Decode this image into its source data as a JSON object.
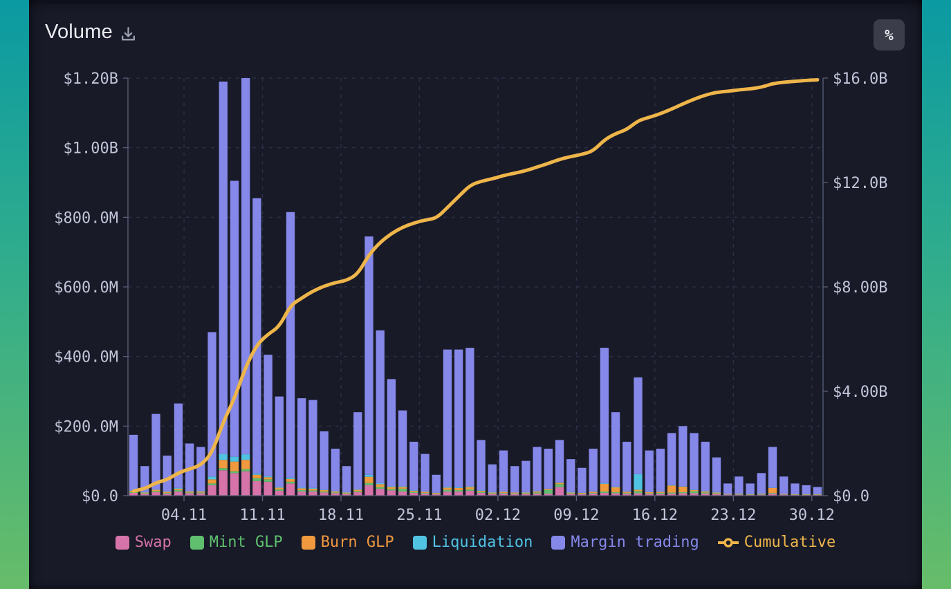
{
  "header": {
    "title": "Volume",
    "download_icon": "download-icon",
    "percent_button": "%"
  },
  "colors": {
    "page_gradient_top": "#0b9aa2",
    "page_gradient_bottom": "#67bc69",
    "card_bg": "#181a28",
    "grid": "#2c3046",
    "axis_line": "#5b6078",
    "axis_text": "#c2c6d9",
    "title_text": "#ececf2",
    "icon": "#9aa0b2",
    "button_bg": "#3b3e4a",
    "button_text": "#e8e9ee"
  },
  "chart_data": {
    "type": "bar",
    "stacked": true,
    "unit": "$M",
    "grid": true,
    "legend_position": "bottom",
    "dates": [
      "31.10",
      "01.11",
      "02.11",
      "03.11",
      "04.11",
      "05.11",
      "06.11",
      "07.11",
      "08.11",
      "09.11",
      "10.11",
      "11.11",
      "12.11",
      "13.11",
      "14.11",
      "15.11",
      "16.11",
      "17.11",
      "18.11",
      "19.11",
      "20.11",
      "21.11",
      "22.11",
      "23.11",
      "24.11",
      "25.11",
      "26.11",
      "27.11",
      "28.11",
      "29.11",
      "30.11",
      "01.12",
      "02.12",
      "03.12",
      "04.12",
      "05.12",
      "06.12",
      "07.12",
      "08.12",
      "09.12",
      "10.12",
      "11.12",
      "12.12",
      "13.12",
      "14.12",
      "15.12",
      "16.12",
      "17.12",
      "18.12",
      "19.12",
      "20.12",
      "21.12",
      "22.12",
      "23.12",
      "24.12",
      "25.12",
      "26.12",
      "27.12",
      "28.12",
      "29.12",
      "30.12",
      "31.12"
    ],
    "series": [
      {
        "name": "Swap",
        "color": "#d673a8",
        "values": [
          8,
          5,
          10,
          6,
          12,
          7,
          7,
          30,
          73,
          65,
          70,
          42,
          40,
          14,
          35,
          12,
          12,
          9,
          7,
          5,
          10,
          30,
          20,
          15,
          12,
          8,
          6,
          4,
          12,
          12,
          14,
          8,
          5,
          6,
          5,
          5,
          6,
          6,
          25,
          5,
          4,
          6,
          8,
          7,
          6,
          7,
          5,
          5,
          6,
          7,
          7,
          6,
          5,
          3,
          3,
          2,
          3,
          6,
          3,
          2,
          2,
          2
        ]
      },
      {
        "name": "Mint GLP",
        "color": "#5fbf6e",
        "values": [
          3,
          2,
          3,
          2,
          4,
          2,
          2,
          5,
          6,
          5,
          6,
          8,
          7,
          4,
          5,
          4,
          3,
          3,
          2,
          2,
          3,
          6,
          5,
          4,
          8,
          3,
          2,
          2,
          5,
          4,
          4,
          3,
          2,
          2,
          2,
          2,
          3,
          10,
          8,
          2,
          2,
          2,
          4,
          3,
          2,
          6,
          2,
          3,
          3,
          3,
          6,
          3,
          2,
          1,
          2,
          1,
          2,
          2,
          1,
          1,
          1,
          1
        ]
      },
      {
        "name": "Burn GLP",
        "color": "#f0993e",
        "values": [
          3,
          2,
          4,
          3,
          4,
          3,
          3,
          12,
          24,
          28,
          27,
          10,
          6,
          5,
          8,
          5,
          5,
          4,
          3,
          2,
          4,
          18,
          8,
          6,
          5,
          3,
          3,
          2,
          6,
          6,
          7,
          3,
          2,
          3,
          2,
          2,
          3,
          3,
          4,
          2,
          2,
          3,
          22,
          14,
          3,
          4,
          3,
          3,
          20,
          16,
          3,
          3,
          2,
          1,
          1,
          1,
          1,
          14,
          1,
          1,
          1,
          1
        ]
      },
      {
        "name": "Liquidation",
        "color": "#50c3e3",
        "values": [
          1,
          1,
          1,
          1,
          2,
          1,
          1,
          8,
          17,
          14,
          16,
          4,
          3,
          2,
          4,
          2,
          2,
          1,
          1,
          1,
          1,
          6,
          3,
          2,
          2,
          1,
          1,
          0,
          2,
          2,
          2,
          1,
          1,
          1,
          0,
          1,
          1,
          1,
          1,
          1,
          0,
          1,
          2,
          2,
          1,
          45,
          1,
          1,
          1,
          1,
          1,
          1,
          1,
          0,
          0,
          0,
          0,
          1,
          0,
          0,
          0,
          0
        ]
      },
      {
        "name": "Margin trading",
        "color": "#8588e8",
        "values": [
          160,
          75,
          217,
          103,
          243,
          137,
          127,
          415,
          1070,
          793,
          1081,
          791,
          349,
          260,
          763,
          257,
          253,
          168,
          122,
          75,
          222,
          685,
          439,
          308,
          218,
          140,
          108,
          52,
          395,
          396,
          398,
          145,
          80,
          118,
          76,
          90,
          127,
          115,
          122,
          95,
          72,
          123,
          389,
          214,
          143,
          278,
          119,
          123,
          150,
          173,
          163,
          142,
          100,
          30,
          49,
          31,
          59,
          117,
          50,
          31,
          26,
          21
        ]
      }
    ],
    "line_series": {
      "name": "Cumulative",
      "color": "#eeb54a",
      "axis": "right",
      "values": [
        175,
        260,
        495,
        610,
        875,
        1025,
        1165,
        1635,
        2825,
        3730,
        4930,
        5785,
        6190,
        6475,
        7290,
        7570,
        7845,
        8030,
        8165,
        8250,
        8490,
        9235,
        9710,
        10045,
        10290,
        10445,
        10565,
        10625,
        11045,
        11465,
        11890,
        12050,
        12140,
        12270,
        12355,
        12455,
        12595,
        12730,
        12890,
        12995,
        13075,
        13210,
        13635,
        13875,
        14030,
        14370,
        14500,
        14635,
        14815,
        15015,
        15195,
        15350,
        15460,
        15495,
        15550,
        15585,
        15650,
        15790,
        15845,
        15880,
        15910,
        15935
      ]
    },
    "left_axis": {
      "title": "",
      "max": 1200,
      "ticks": [
        "$0.0",
        "$200.0M",
        "$400.0M",
        "$600.0M",
        "$800.0M",
        "$1.00B",
        "$1.20B"
      ]
    },
    "right_axis": {
      "title": "",
      "max": 16000,
      "ticks": [
        "$0.0",
        "$4.00B",
        "$8.00B",
        "$12.0B",
        "$16.0B"
      ]
    },
    "x_ticks": [
      {
        "label": "04.11",
        "slot": 5
      },
      {
        "label": "11.11",
        "slot": 12
      },
      {
        "label": "18.11",
        "slot": 19
      },
      {
        "label": "25.11",
        "slot": 26
      },
      {
        "label": "02.12",
        "slot": 33
      },
      {
        "label": "09.12",
        "slot": 40
      },
      {
        "label": "16.12",
        "slot": 47
      },
      {
        "label": "23.12",
        "slot": 54
      },
      {
        "label": "30.12",
        "slot": 61
      }
    ]
  }
}
